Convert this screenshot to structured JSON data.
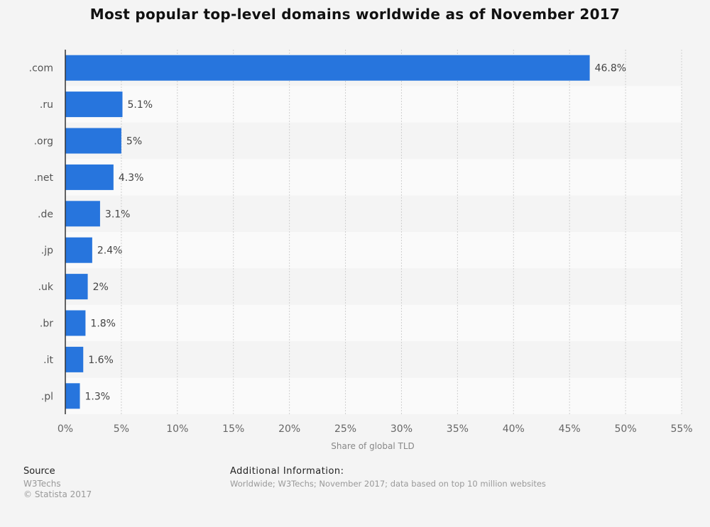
{
  "chart_data": {
    "type": "bar",
    "orientation": "horizontal",
    "title": "Most popular top-level domains worldwide as of November 2017",
    "categories": [
      ".com",
      ".ru",
      ".org",
      ".net",
      ".de",
      ".jp",
      ".uk",
      ".br",
      ".it",
      ".pl"
    ],
    "values": [
      46.8,
      5.1,
      5,
      4.3,
      3.1,
      2.4,
      2,
      1.8,
      1.6,
      1.3
    ],
    "value_labels": [
      "46.8%",
      "5.1%",
      "5%",
      "4.3%",
      "3.1%",
      "2.4%",
      "2%",
      "1.8%",
      "1.6%",
      "1.3%"
    ],
    "xlabel": "Share of global TLD",
    "ylabel": "",
    "xlim": [
      0,
      55
    ],
    "xticks": [
      0,
      5,
      10,
      15,
      20,
      25,
      30,
      35,
      40,
      45,
      50,
      55
    ],
    "xtick_labels": [
      "0%",
      "5%",
      "10%",
      "15%",
      "20%",
      "25%",
      "30%",
      "35%",
      "40%",
      "45%",
      "50%",
      "55%"
    ],
    "grid": true,
    "bar_color": "#2775dd"
  },
  "footer": {
    "source_heading": "Source",
    "source_lines": [
      "W3Techs",
      "© Statista 2017"
    ],
    "additional_heading": "Additional Information:",
    "additional_text": "Worldwide; W3Techs; November 2017; data based on top 10 million websites"
  }
}
